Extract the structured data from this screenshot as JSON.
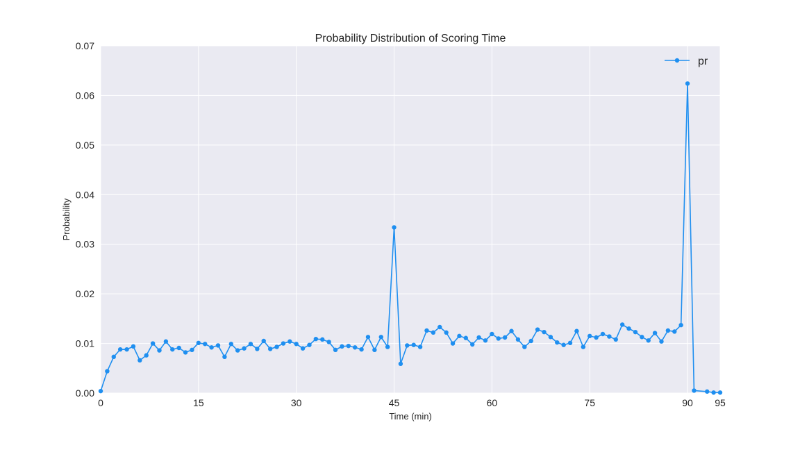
{
  "chart_data": {
    "type": "line",
    "title": "Probability Distribution of Scoring Time",
    "xlabel": "Time (min)",
    "ylabel": "Probability",
    "xlim": [
      0,
      95
    ],
    "ylim": [
      0,
      0.07
    ],
    "x_ticks": [
      0,
      15,
      30,
      45,
      60,
      75,
      90,
      95
    ],
    "y_ticks": [
      0.0,
      0.01,
      0.02,
      0.03,
      0.04,
      0.05,
      0.06,
      0.07
    ],
    "y_tick_labels": [
      "0.00",
      "0.01",
      "0.02",
      "0.03",
      "0.04",
      "0.05",
      "0.06",
      "0.07"
    ],
    "grid": true,
    "legend_position": "top-right",
    "series": [
      {
        "name": "pr",
        "color": "#1f8ff0",
        "x": [
          0,
          1,
          2,
          3,
          4,
          5,
          6,
          7,
          8,
          9,
          10,
          11,
          12,
          13,
          14,
          15,
          16,
          17,
          18,
          19,
          20,
          21,
          22,
          23,
          24,
          25,
          26,
          27,
          28,
          29,
          30,
          31,
          32,
          33,
          34,
          35,
          36,
          37,
          38,
          39,
          40,
          41,
          42,
          43,
          44,
          45,
          46,
          47,
          48,
          49,
          50,
          51,
          52,
          53,
          54,
          55,
          56,
          57,
          58,
          59,
          60,
          61,
          62,
          63,
          64,
          65,
          66,
          67,
          68,
          69,
          70,
          71,
          72,
          73,
          74,
          75,
          76,
          77,
          78,
          79,
          80,
          81,
          82,
          83,
          84,
          85,
          86,
          87,
          88,
          89,
          90,
          91,
          93,
          94,
          95
        ],
        "y": [
          0.0004,
          0.0044,
          0.0073,
          0.0088,
          0.0088,
          0.0094,
          0.0066,
          0.0076,
          0.01,
          0.0086,
          0.0104,
          0.0088,
          0.0091,
          0.0082,
          0.0087,
          0.0101,
          0.0099,
          0.0092,
          0.0096,
          0.0073,
          0.0099,
          0.0086,
          0.009,
          0.0099,
          0.0089,
          0.0105,
          0.0089,
          0.0093,
          0.01,
          0.0104,
          0.0099,
          0.009,
          0.0097,
          0.0109,
          0.0108,
          0.0103,
          0.0087,
          0.0094,
          0.0095,
          0.0092,
          0.0088,
          0.0113,
          0.0087,
          0.0113,
          0.0093,
          0.0334,
          0.0059,
          0.0096,
          0.0097,
          0.0093,
          0.0126,
          0.0122,
          0.0133,
          0.0122,
          0.01,
          0.0115,
          0.0111,
          0.0098,
          0.0112,
          0.0106,
          0.0119,
          0.011,
          0.0112,
          0.0125,
          0.0108,
          0.0093,
          0.0105,
          0.0128,
          0.0123,
          0.0113,
          0.0102,
          0.0097,
          0.0101,
          0.0125,
          0.0093,
          0.0115,
          0.0112,
          0.0119,
          0.0114,
          0.0108,
          0.0138,
          0.013,
          0.0123,
          0.0113,
          0.0106,
          0.0121,
          0.0104,
          0.0126,
          0.0124,
          0.0137,
          0.0624,
          0.0005,
          0.0003,
          0.0001,
          0.0001
        ]
      }
    ]
  }
}
